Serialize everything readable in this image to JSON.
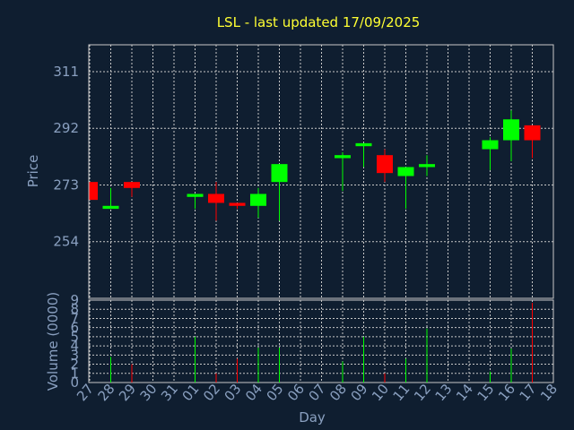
{
  "chart_data": {
    "type": "candlestick",
    "title": "LSL - last updated 17/09/2025",
    "xlabel": "Day",
    "price_panel": {
      "ylabel": "Price",
      "ylim": [
        235,
        320
      ],
      "yticks": [
        254,
        273,
        292,
        311
      ],
      "grid": true
    },
    "volume_panel": {
      "ylabel": "Volume (0000)",
      "ylim": [
        0,
        9
      ],
      "yticks": [
        0,
        1,
        2,
        3,
        4,
        5,
        6,
        7,
        8,
        9
      ],
      "grid": true
    },
    "colors": {
      "up": "#00ff00",
      "down": "#ff0000",
      "background": "#0f1e30",
      "grid": "#c8c8c8",
      "title": "#ffff33",
      "axis": "#8aa0c0"
    },
    "categories": [
      "27",
      "28",
      "29",
      "30",
      "31",
      "01",
      "02",
      "03",
      "04",
      "05",
      "06",
      "07",
      "08",
      "09",
      "10",
      "11",
      "12",
      "13",
      "14",
      "15",
      "16",
      "17",
      "18"
    ],
    "candles": [
      {
        "day": "27",
        "open": 274,
        "high": 274,
        "low": 268,
        "close": 268,
        "volume": 0
      },
      {
        "day": "28",
        "open": 265,
        "high": 272,
        "low": 265,
        "close": 266,
        "volume": 2.8
      },
      {
        "day": "29",
        "open": 274,
        "high": 274,
        "low": 269,
        "close": 272,
        "volume": 2.0
      },
      {
        "day": "30",
        "open": null,
        "high": null,
        "low": null,
        "close": null,
        "volume": 0
      },
      {
        "day": "31",
        "open": null,
        "high": null,
        "low": null,
        "close": null,
        "volume": 0
      },
      {
        "day": "01",
        "open": 269,
        "high": 270,
        "low": 265,
        "close": 270,
        "volume": 5.0
      },
      {
        "day": "02",
        "open": 270,
        "high": 274,
        "low": 261,
        "close": 267,
        "volume": 1.0
      },
      {
        "day": "03",
        "open": 267,
        "high": 267,
        "low": 265,
        "close": 266,
        "volume": 2.6
      },
      {
        "day": "04",
        "open": 266,
        "high": 272,
        "low": 262,
        "close": 270,
        "volume": 3.8
      },
      {
        "day": "05",
        "open": 274,
        "high": 280,
        "low": 261,
        "close": 280,
        "volume": 3.8
      },
      {
        "day": "06",
        "open": null,
        "high": null,
        "low": null,
        "close": null,
        "volume": 0
      },
      {
        "day": "07",
        "open": null,
        "high": null,
        "low": null,
        "close": null,
        "volume": 0
      },
      {
        "day": "08",
        "open": 282,
        "high": 284,
        "low": 271,
        "close": 283,
        "volume": 2.3
      },
      {
        "day": "09",
        "open": 286,
        "high": 287,
        "low": 279,
        "close": 287,
        "volume": 5.0
      },
      {
        "day": "10",
        "open": 283,
        "high": 285,
        "low": 274,
        "close": 277,
        "volume": 1.0
      },
      {
        "day": "11",
        "open": 276,
        "high": 279,
        "low": 265,
        "close": 279,
        "volume": 2.6
      },
      {
        "day": "12",
        "open": 279,
        "high": 283,
        "low": 276,
        "close": 280,
        "volume": 5.9
      },
      {
        "day": "13",
        "open": null,
        "high": null,
        "low": null,
        "close": null,
        "volume": 0
      },
      {
        "day": "14",
        "open": null,
        "high": null,
        "low": null,
        "close": null,
        "volume": 0
      },
      {
        "day": "15",
        "open": 285,
        "high": 289,
        "low": 278,
        "close": 288,
        "volume": 1.2
      },
      {
        "day": "16",
        "open": 288,
        "high": 298,
        "low": 281,
        "close": 295,
        "volume": 3.7
      },
      {
        "day": "17",
        "open": 293,
        "high": 293,
        "low": 282,
        "close": 288,
        "volume": 8.7
      },
      {
        "day": "18",
        "open": null,
        "high": null,
        "low": null,
        "close": null,
        "volume": 0
      }
    ]
  }
}
